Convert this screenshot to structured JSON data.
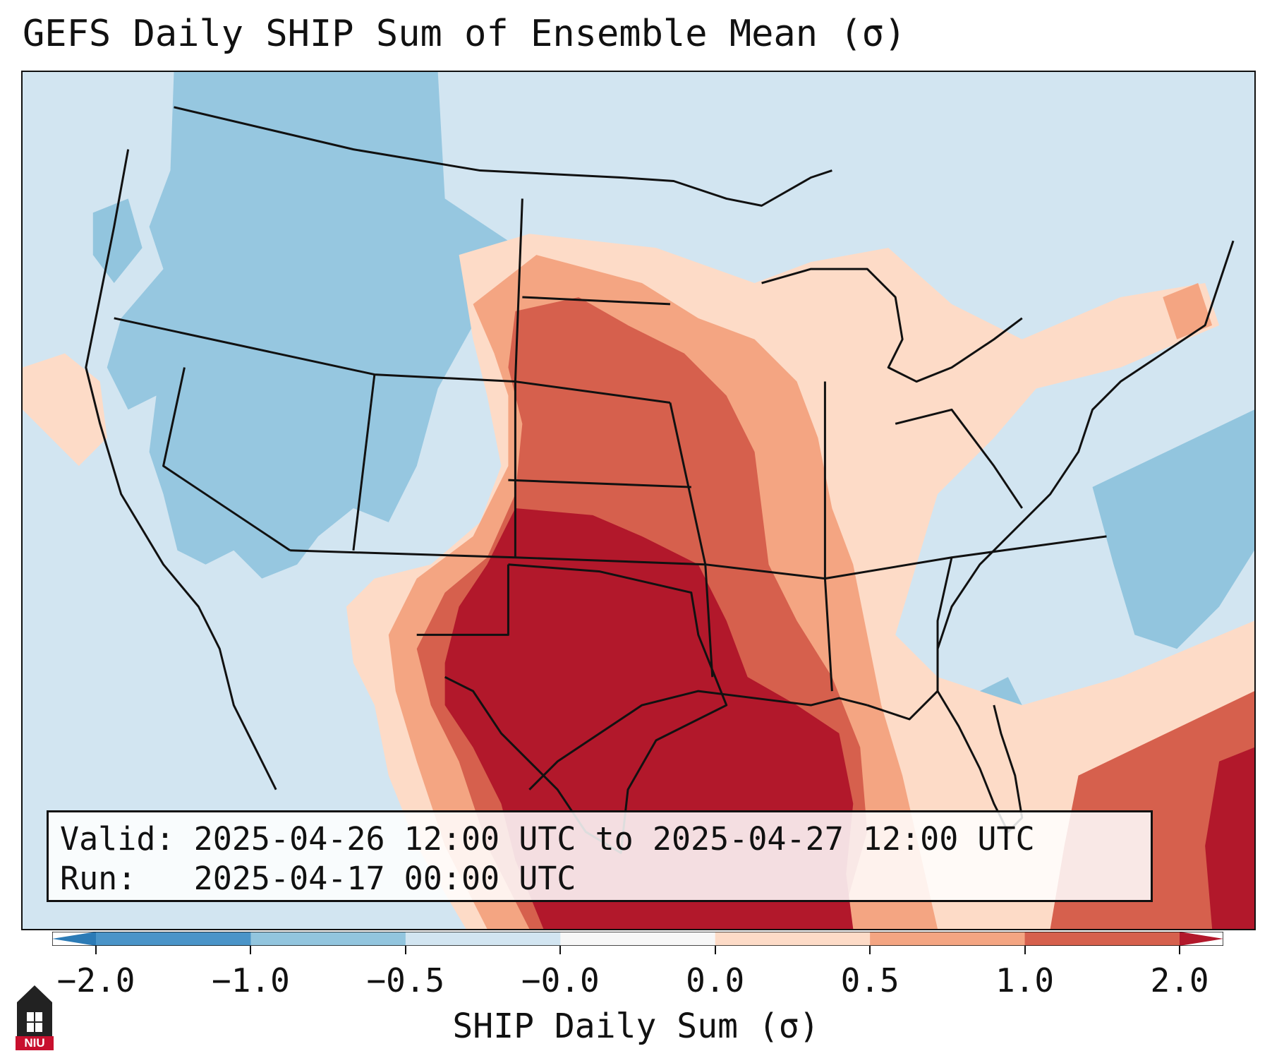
{
  "title": "GEFS Daily SHIP Sum of Ensemble Mean (σ)",
  "info": {
    "valid_line": "Valid: 2025-04-26 12:00 UTC to 2025-04-27 12:00 UTC",
    "run_line": "Run:   2025-04-17 00:00 UTC"
  },
  "colorbar": {
    "label": "SHIP Daily Sum (σ)",
    "ticks": [
      "−2.0",
      "−1.0",
      "−0.5",
      "−0.0",
      "0.0",
      "0.5",
      "1.0",
      "2.0"
    ],
    "colors": [
      "#2c7bb6",
      "#4a94c8",
      "#92c5de",
      "#d2e5f1",
      "#f7f7f7",
      "#fddbc7",
      "#f4a582",
      "#d6604d",
      "#b2182b"
    ]
  },
  "logo": {
    "text": "NIU",
    "color": "#c8102e"
  },
  "colors": {
    "ocean_background": "#d2e5f1",
    "strong_positive": "#b2182b",
    "moderate_positive": "#d6604d",
    "weak_positive": "#f4a582",
    "slight_positive": "#fddbc7",
    "slight_negative": "#92c5de"
  }
}
